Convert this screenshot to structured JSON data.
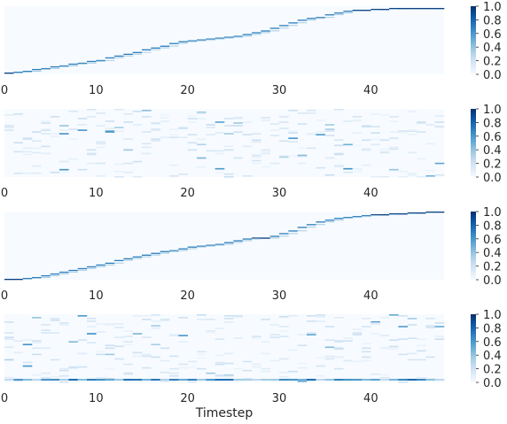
{
  "figure": {
    "xlabel": "Timestep",
    "x_ticks": [
      "0",
      "10",
      "20",
      "30",
      "40"
    ],
    "colorbar_ticks": [
      "1.0",
      "0.8",
      "0.6",
      "0.4",
      "0.2",
      "0.0"
    ],
    "colormap": [
      "#f7fbff",
      "#deebf7",
      "#c6dbef",
      "#9ecae1",
      "#6baed6",
      "#4292c6",
      "#2171b5",
      "#08519c",
      "#08306b"
    ]
  },
  "chart_data": [
    {
      "type": "heatmap",
      "panel": 1,
      "pattern": "alignment",
      "steps": 48,
      "value_range": [
        0.0,
        1.0
      ],
      "grid": false,
      "path_rows": [
        1,
        2,
        3,
        5,
        6,
        8,
        9,
        11,
        12,
        14,
        15,
        18,
        20,
        22,
        24,
        27,
        29,
        31,
        34,
        36,
        37,
        38,
        39,
        40,
        41,
        42,
        44,
        46,
        48,
        51,
        54,
        57,
        60,
        62,
        63,
        66,
        68,
        70,
        71,
        71,
        72,
        72,
        73,
        73,
        73,
        73,
        73,
        73
      ]
    },
    {
      "type": "heatmap",
      "panel": 2,
      "pattern": "diffuse",
      "steps": 48,
      "value_range": [
        0.0,
        1.0
      ],
      "grid": false
    },
    {
      "type": "heatmap",
      "panel": 3,
      "pattern": "alignment",
      "steps": 48,
      "value_range": [
        0.0,
        1.0
      ],
      "grid": false,
      "path_rows": [
        0,
        0,
        1,
        2,
        4,
        6,
        8,
        10,
        12,
        14,
        16,
        18,
        21,
        23,
        25,
        27,
        29,
        31,
        32,
        34,
        36,
        37,
        38,
        39,
        41,
        43,
        45,
        46,
        46,
        48,
        51,
        54,
        58,
        61,
        64,
        66,
        68,
        69,
        70,
        71,
        72,
        72,
        73,
        73,
        74,
        74,
        75,
        75
      ]
    },
    {
      "type": "heatmap",
      "panel": 4,
      "pattern": "diffuse-bottom",
      "steps": 48,
      "value_range": [
        0.0,
        1.0
      ],
      "grid": false
    }
  ]
}
